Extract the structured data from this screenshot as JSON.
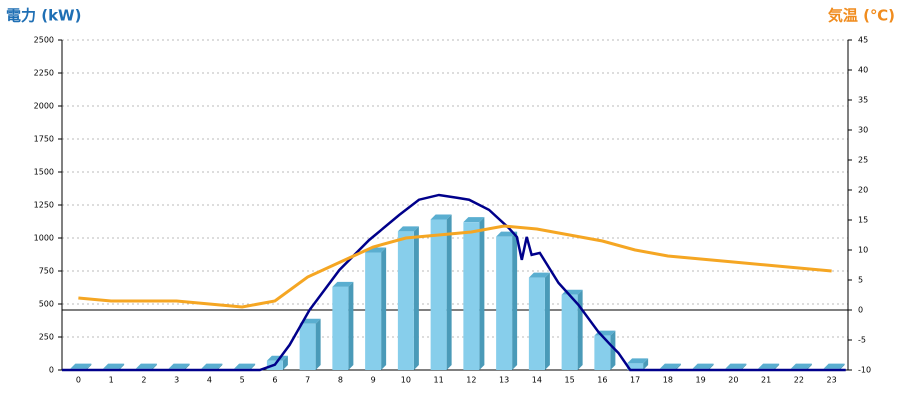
{
  "chart_data": {
    "type": "bar-line",
    "y_title": "電力 (kW)",
    "y2_title": "気温 (℃)",
    "categories": [
      "0",
      "1",
      "2",
      "3",
      "4",
      "5",
      "6",
      "7",
      "8",
      "9",
      "10",
      "11",
      "12",
      "13",
      "14",
      "15",
      "16",
      "17",
      "18",
      "19",
      "20",
      "21",
      "22",
      "23"
    ],
    "xlim": [
      -0.5,
      23.5
    ],
    "ylim": [
      0,
      2500
    ],
    "yticks": [
      0,
      250,
      500,
      750,
      1000,
      1250,
      1500,
      1750,
      2000,
      2250,
      2500
    ],
    "y2lim": [
      -10,
      45
    ],
    "y2ticks": [
      -10,
      -5,
      0,
      5,
      10,
      15,
      20,
      25,
      30,
      35,
      40,
      45
    ],
    "grid": true,
    "bars": {
      "color": "#87ceeb",
      "values": [
        10,
        10,
        10,
        10,
        10,
        10,
        70,
        350,
        630,
        890,
        1050,
        1140,
        1120,
        1010,
        700,
        570,
        260,
        50,
        10,
        10,
        10,
        10,
        10,
        10
      ]
    },
    "power_line": {
      "color": "#00008b",
      "x": [
        -0.5,
        5.54,
        6.0,
        6.45,
        7.06,
        7.97,
        8.88,
        9.8,
        10.4,
        11.01,
        11.56,
        11.93,
        12.54,
        13.14,
        13.39,
        13.54,
        13.69,
        13.84,
        14.09,
        14.66,
        15.27,
        15.88,
        16.25,
        16.49,
        16.85,
        23.43
      ],
      "values": [
        0,
        0,
        40,
        190,
        455,
        758,
        985,
        1175,
        1290,
        1326,
        1305,
        1290,
        1213,
        1076,
        1008,
        834,
        1008,
        872,
        887,
        660,
        493,
        288,
        190,
        129,
        0,
        0
      ]
    },
    "temp_line": {
      "color": "#f5a623",
      "axis": "y2",
      "values": [
        2,
        1.5,
        1.5,
        1.5,
        1,
        0.5,
        1.5,
        5.5,
        8,
        10.5,
        12,
        12.5,
        13,
        14,
        13.5,
        12.5,
        11.5,
        10,
        9,
        8.5,
        8,
        7.5,
        7,
        6.5
      ]
    }
  }
}
